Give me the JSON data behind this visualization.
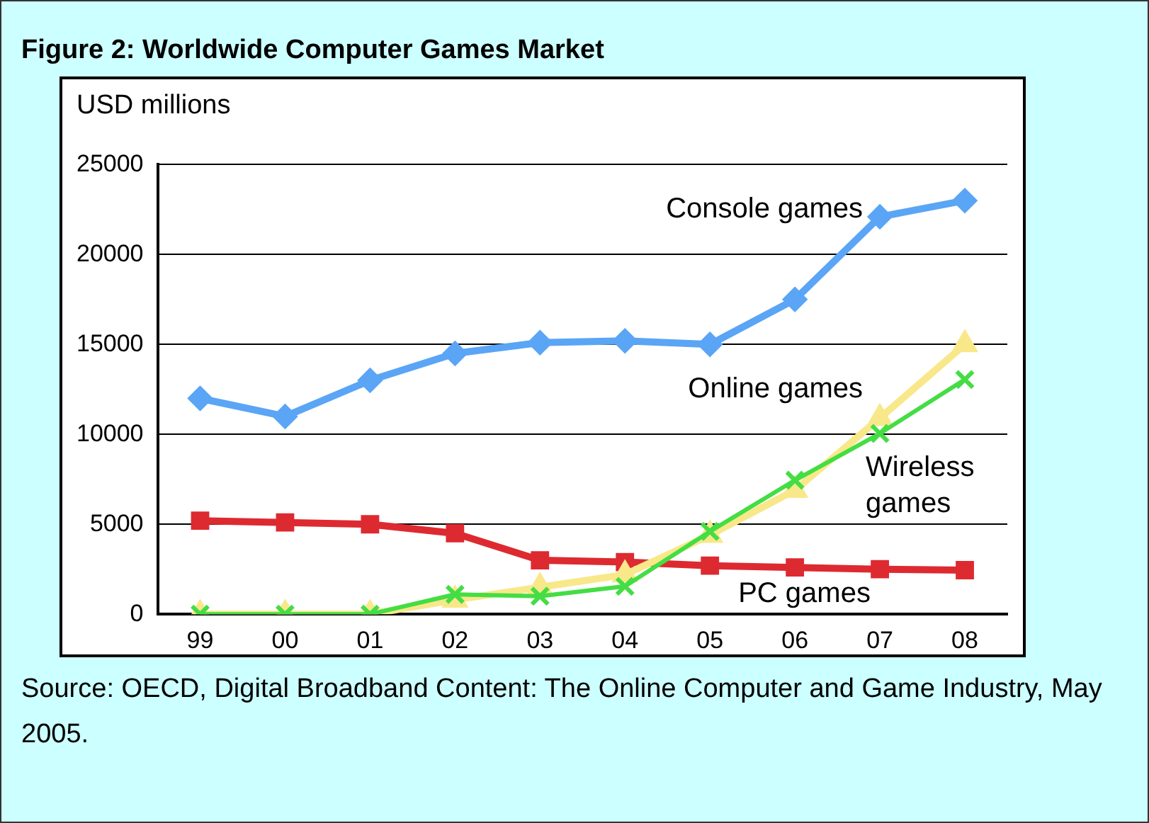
{
  "chart_data": {
    "type": "line",
    "title": "Figure 2: Worldwide Computer Games Market",
    "ylabel": "USD millions",
    "categories": [
      "99",
      "00",
      "01",
      "02",
      "03",
      "04",
      "05",
      "06",
      "07",
      "08"
    ],
    "series": [
      {
        "name": "Console games",
        "color": "#5aa5f5",
        "marker": "diamond",
        "values": [
          12000,
          11000,
          13000,
          14500,
          15100,
          15200,
          15000,
          17500,
          22100,
          23000
        ]
      },
      {
        "name": "PC games",
        "color": "#dd2a30",
        "marker": "square",
        "values": [
          5200,
          5100,
          5000,
          4500,
          3000,
          2900,
          2700,
          2600,
          2500,
          2450
        ]
      },
      {
        "name": "Online games",
        "color": "#f8e88a",
        "marker": "triangle",
        "values": [
          0,
          0,
          0,
          800,
          1500,
          2200,
          4400,
          6900,
          10900,
          15000
        ]
      },
      {
        "name": "Wireless games",
        "color": "#44dd44",
        "marker": "cross",
        "values": [
          0,
          0,
          0,
          1100,
          1000,
          1550,
          4600,
          7450,
          10050,
          13050
        ]
      }
    ],
    "ylim": [
      0,
      25000
    ],
    "yticks": [
      0,
      5000,
      10000,
      15000,
      20000,
      25000
    ],
    "grid": "y",
    "legend": false,
    "annotations": [
      "Source: OECD, Digital Broadband Content: The Online Computer and Game Industry, May 2005."
    ]
  }
}
